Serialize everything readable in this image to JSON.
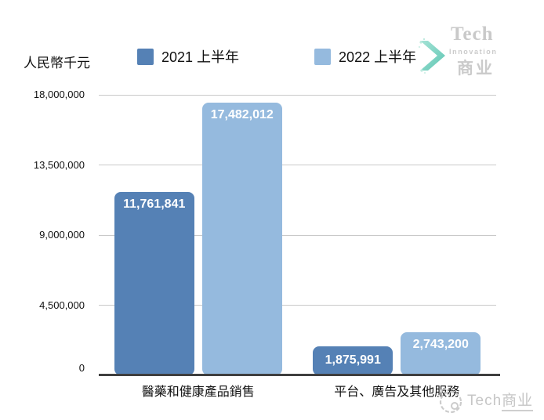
{
  "chart": {
    "unit_label": "人民幣千元"
  },
  "legend": {
    "items": [
      {
        "label": "2021 上半年",
        "color": "#5581b5"
      },
      {
        "label": "2022 上半年",
        "color": "#95bade"
      }
    ]
  },
  "chart_data": {
    "type": "bar",
    "title": "",
    "categories": [
      "醫藥和健康產品銷售",
      "平台、廣告及其他服務"
    ],
    "series": [
      {
        "name": "2021 上半年",
        "color": "#5581b5",
        "values": [
          11761841,
          1875991
        ],
        "value_labels": [
          "11,761,841",
          "1,875,991"
        ]
      },
      {
        "name": "2022 上半年",
        "color": "#95bade",
        "values": [
          17482012,
          2743200
        ],
        "value_labels": [
          "17,482,012",
          "2,743,200"
        ]
      }
    ],
    "xlabel": "",
    "ylabel": "人民幣千元",
    "ylim": [
      0,
      18000000
    ],
    "yticks": [
      0,
      4500000,
      9000000,
      13500000,
      18000000
    ],
    "ytick_labels": [
      "0",
      "4,500,000",
      "9,000,000",
      "13,500,000",
      "18,000,000"
    ],
    "grid": true,
    "legend_position": "top",
    "bar_value_text_color": "#ffffff",
    "gridline_color": "#c9c9c9",
    "axis_line_color": "#3f3f3f"
  },
  "logo": {
    "name": "Tech",
    "subtitle": "Innovation",
    "cn": "商业"
  },
  "watermark": {
    "brand": "Tech",
    "brand_cn": "商业"
  }
}
